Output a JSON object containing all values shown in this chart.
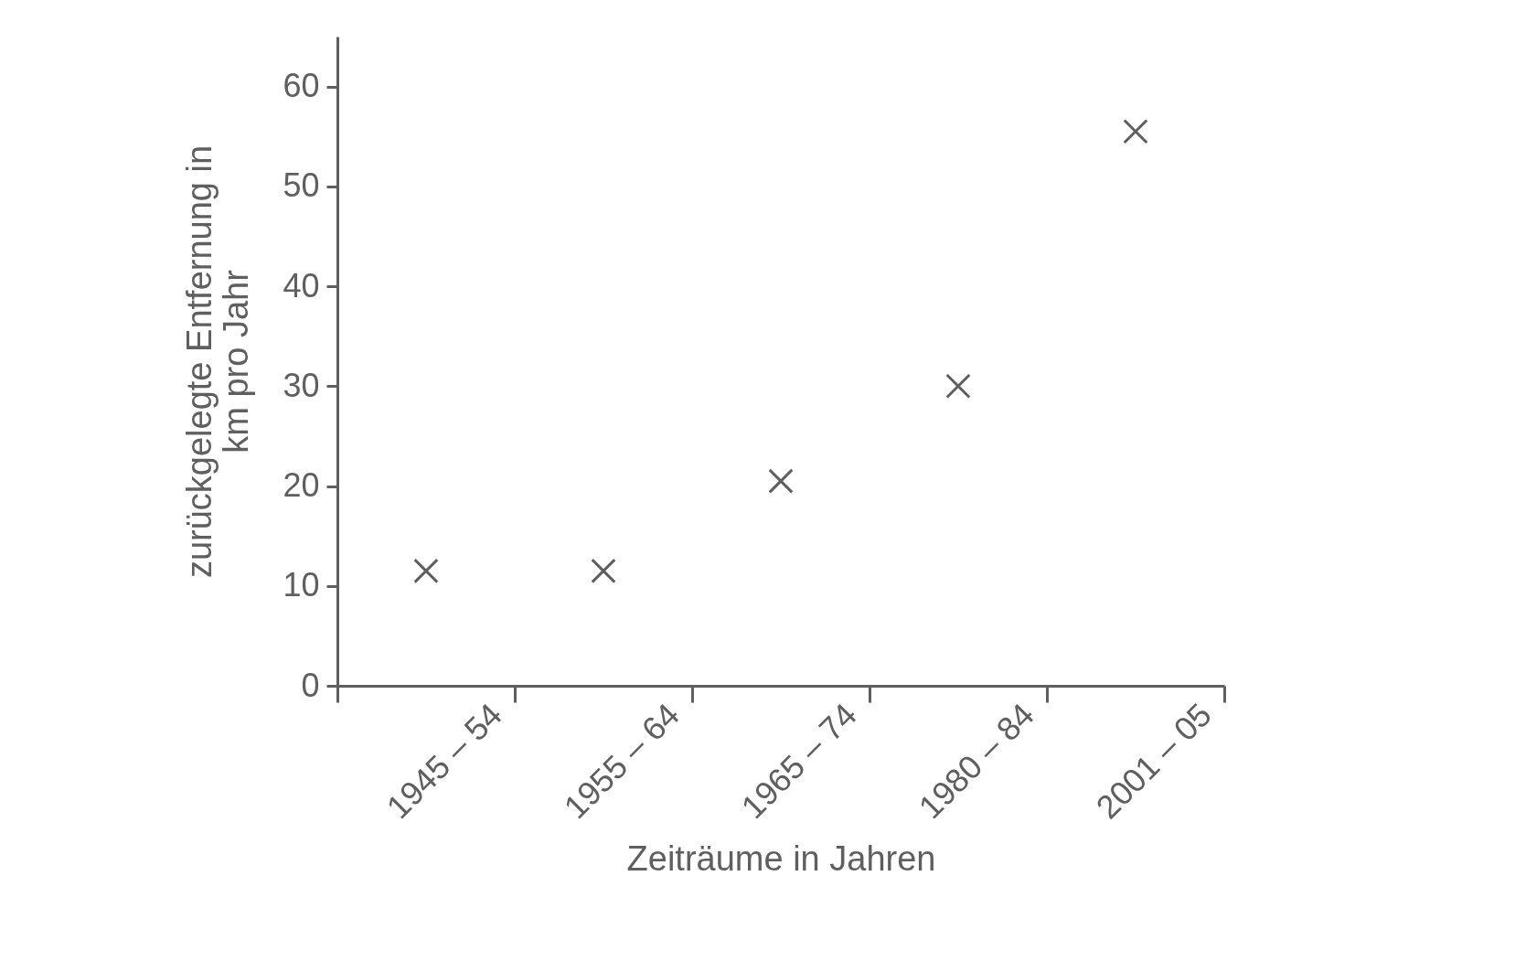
{
  "chart_data": {
    "type": "scatter",
    "xlabel": "Zeiträume in Jahren",
    "ylabel": "zurückgelegte Entfernung in km pro Jahr",
    "categories": [
      "1945 – 54",
      "1955 – 64",
      "1965 – 74",
      "1980 – 84",
      "2001 – 05"
    ],
    "series": [
      {
        "color": "#5f5f5f",
        "values": [
          11.5,
          11.5,
          20.5,
          30,
          55.5
        ]
      }
    ],
    "ylim": [
      0,
      65
    ],
    "yticks": [
      0,
      10,
      20,
      30,
      40,
      50,
      60
    ],
    "grid": false,
    "marker": "cross"
  }
}
